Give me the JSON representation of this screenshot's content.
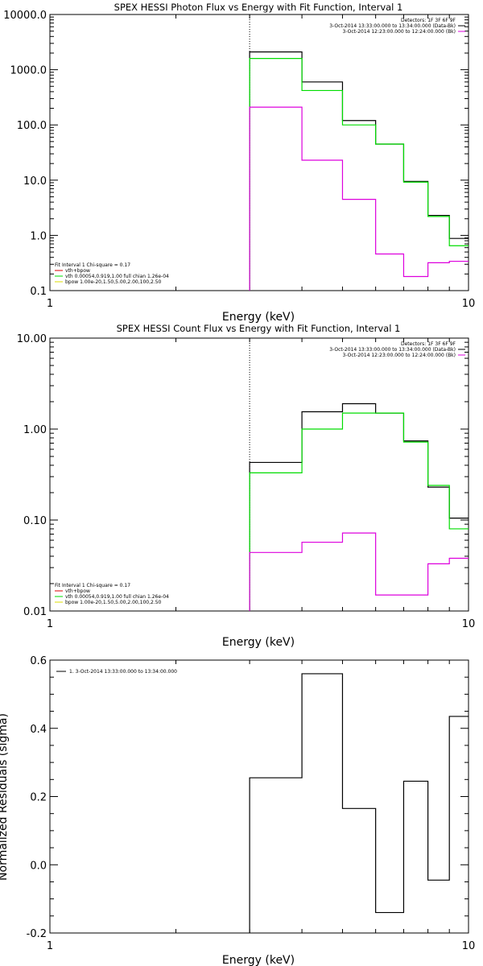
{
  "chart_data": [
    {
      "type": "line",
      "title": "SPEX HESSI Photon Flux vs Energy with Fit Function, Interval 1",
      "xlabel": "Energy (keV)",
      "ylabel": "",
      "xscale": "log",
      "yscale": "log",
      "xlim": [
        1,
        10
      ],
      "ylim": [
        0.1,
        10000
      ],
      "yticklabels": [
        "0.1",
        "1.0",
        "10.0",
        "100.0",
        "1000.0",
        "10000.0"
      ],
      "xticklabels": [
        "1",
        "10"
      ],
      "marker_x": 3,
      "bin_edges": [
        3,
        4,
        5,
        6,
        7,
        8,
        9,
        10
      ],
      "series": [
        {
          "key": "data",
          "color": "#000000",
          "values": [
            2100,
            600,
            120,
            45,
            9.5,
            2.3,
            0.88
          ]
        },
        {
          "key": "vth",
          "color": "#00dd00",
          "values": [
            1600,
            420,
            100,
            45,
            9.2,
            2.2,
            0.65
          ]
        },
        {
          "key": "bpow",
          "color": "#dd00dd",
          "values": [
            210,
            23,
            4.5,
            0.46,
            0.18,
            0.32,
            0.34
          ]
        }
      ],
      "legend_top": [
        {
          "text": "Detectors: 1F 3F 6F 9F",
          "color": "#000000"
        },
        {
          "text": "3-Oct-2014 13:33:00.000 to 13:34:00.000 (Data-Bk)",
          "color": "#000000"
        },
        {
          "text": "3-Oct-2014 12:23:00.000 to 12:24:00.000 (Bk)",
          "color": "#dd00dd"
        }
      ],
      "legend_bottom_header": "Fit Interval 1    Chi-square = 0.17",
      "legend_bottom": [
        {
          "text": "vth+bpow",
          "color": "#dd0000"
        },
        {
          "text": "vth 0.00054,0.919,1.00   full chian 1.26e-04",
          "color": "#00dd00"
        },
        {
          "text": "bpow 1.00e-20,1.50,5.00,2.00,100,2.50",
          "color": "#dddd00"
        }
      ]
    },
    {
      "type": "line",
      "title": "SPEX HESSI Count Flux vs Energy with Fit Function, Interval 1",
      "xlabel": "Energy (keV)",
      "ylabel": "",
      "xscale": "log",
      "yscale": "log",
      "xlim": [
        1,
        10
      ],
      "ylim": [
        0.01,
        10
      ],
      "yticklabels": [
        "0.01",
        "0.10",
        "1.00",
        "10.00"
      ],
      "xticklabels": [
        "1",
        "10"
      ],
      "marker_x": 3,
      "bin_edges": [
        3,
        4,
        5,
        6,
        7,
        8,
        9,
        10
      ],
      "series": [
        {
          "key": "data",
          "color": "#000000",
          "values": [
            0.43,
            1.55,
            1.9,
            1.5,
            0.74,
            0.23,
            0.105
          ]
        },
        {
          "key": "vth",
          "color": "#00dd00",
          "values": [
            0.33,
            1.0,
            1.5,
            1.5,
            0.72,
            0.24,
            0.08
          ]
        },
        {
          "key": "bpow",
          "color": "#dd00dd",
          "values": [
            0.044,
            0.057,
            0.072,
            0.015,
            0.015,
            0.033,
            0.038
          ]
        }
      ],
      "legend_top": [
        {
          "text": "Detectors: 1F 3F 6F 9F",
          "color": "#000000"
        },
        {
          "text": "3-Oct-2014 13:33:00.000 to 13:34:00.000 (Data-Bk)",
          "color": "#000000"
        },
        {
          "text": "3-Oct-2014 12:23:00.000 to 12:24:00.000 (Bk)",
          "color": "#dd00dd"
        }
      ],
      "legend_bottom_header": "Fit Interval 1    Chi-square = 0.17",
      "legend_bottom": [
        {
          "text": "vth+bpow",
          "color": "#dd0000"
        },
        {
          "text": "vth 0.00054,0.919,1.00   full chian 1.26e-04",
          "color": "#00dd00"
        },
        {
          "text": "bpow 1.00e-20,1.50,5.00,2.00,100,2.50",
          "color": "#dddd00"
        }
      ]
    },
    {
      "type": "line",
      "title": "",
      "xlabel": "Energy (keV)",
      "ylabel": "Normalized Residuals (sigma)",
      "xscale": "log",
      "yscale": "linear",
      "xlim": [
        1,
        10
      ],
      "ylim": [
        -0.2,
        0.6
      ],
      "yticklabels": [
        "-0.2",
        "0.0",
        "0.2",
        "0.4",
        "0.6"
      ],
      "xticklabels": [
        "1",
        "10"
      ],
      "bin_edges": [
        3,
        4,
        5,
        6,
        7,
        8,
        9,
        10
      ],
      "series": [
        {
          "key": "residuals",
          "color": "#000000",
          "values": [
            0.255,
            0.56,
            0.165,
            -0.14,
            0.245,
            -0.045,
            0.435
          ]
        }
      ],
      "legend_text": "1.  3-Oct-2014 13:33:00.000 to 13:34:00.000"
    }
  ]
}
